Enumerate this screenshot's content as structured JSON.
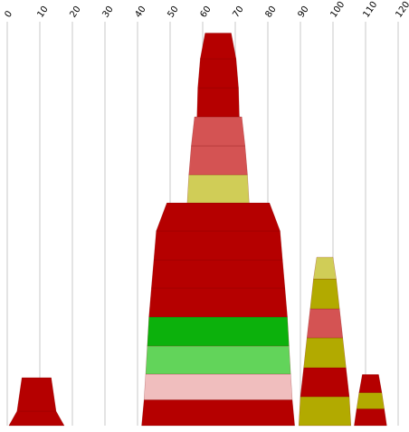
{
  "chart_data": {
    "type": "stacked-stepped-pyramid",
    "title": "",
    "xlabel": "",
    "ylabel": "",
    "xlim": [
      0,
      120
    ],
    "x_ticks": [
      "0",
      "10",
      "20",
      "30",
      "40",
      "50",
      "60",
      "70",
      "80",
      "90",
      "100",
      "110",
      "120"
    ],
    "grid": true,
    "colors": {
      "red": "#b50000",
      "salmon": "#d45353",
      "yellow": "#d0cd57",
      "olive": "#b2aa00",
      "green": "#0cb10c",
      "light_green": "#62d45a",
      "pink": "#f0bebe"
    },
    "groups": [
      {
        "x_min": 0.5,
        "x_max": 17.5,
        "segments": [
          {
            "color": "red",
            "w_bottom": 17,
            "w_top": 12
          },
          {
            "color": "red",
            "w_bottom": 12,
            "w_top": 9
          }
        ]
      },
      {
        "x_min": 41,
        "x_max": 88.5,
        "segments": [
          {
            "color": "red",
            "w_bottom": 47,
            "w_top": 45.5
          },
          {
            "color": "pink",
            "w_bottom": 45.5,
            "w_top": 44.5
          },
          {
            "color": "light_green",
            "w_bottom": 44.5,
            "w_top": 43.5
          },
          {
            "color": "green",
            "w_bottom": 43.5,
            "w_top": 42.5
          },
          {
            "color": "red",
            "w_bottom": 42.5,
            "w_top": 41
          },
          {
            "color": "red",
            "w_bottom": 41,
            "w_top": 39.5
          },
          {
            "color": "red",
            "w_bottom": 39.5,
            "w_top": 38
          },
          {
            "color": "red",
            "w_bottom": 38,
            "w_top": 31.5
          },
          {
            "color": "yellow",
            "w_bottom": 19,
            "w_top": 18
          },
          {
            "color": "salmon",
            "w_bottom": 18,
            "w_top": 16.5
          },
          {
            "color": "salmon",
            "w_bottom": 16.5,
            "w_top": 14.5
          },
          {
            "color": "red",
            "w_bottom": 13,
            "w_top": 12.5
          },
          {
            "color": "red",
            "w_bottom": 12.5,
            "w_top": 11
          },
          {
            "color": "red",
            "w_bottom": 11,
            "w_top": 8
          }
        ]
      },
      {
        "x_min": 89.5,
        "x_max": 105.5,
        "segments": [
          {
            "color": "olive",
            "w_bottom": 16,
            "w_top": 15
          },
          {
            "color": "red",
            "w_bottom": 15,
            "w_top": 13
          },
          {
            "color": "olive",
            "w_bottom": 13,
            "w_top": 11
          },
          {
            "color": "salmon",
            "w_bottom": 11,
            "w_top": 9
          },
          {
            "color": "olive",
            "w_bottom": 9,
            "w_top": 7
          },
          {
            "color": "yellow",
            "w_bottom": 7,
            "w_top": 5
          }
        ]
      },
      {
        "x_min": 106.5,
        "x_max": 116.5,
        "segments": [
          {
            "color": "red",
            "w_bottom": 10,
            "w_top": 8.5
          },
          {
            "color": "olive",
            "w_bottom": 8.5,
            "w_top": 7
          },
          {
            "color": "red",
            "w_bottom": 7,
            "w_top": 5
          }
        ]
      }
    ]
  }
}
